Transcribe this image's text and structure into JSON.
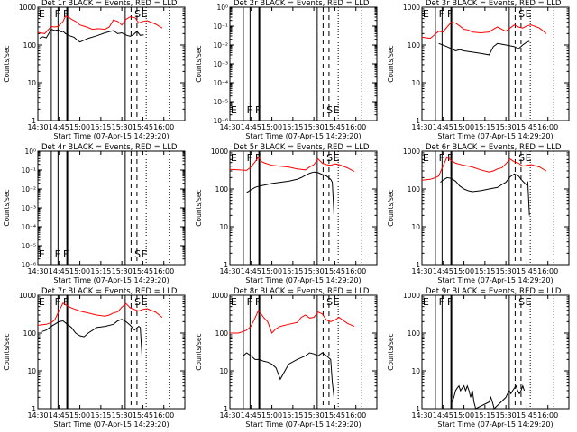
{
  "colors": {
    "events": "#000000",
    "lld": "#ff0000",
    "axes": "#000000",
    "background": "#ffffff"
  },
  "chart_data": [
    {
      "type": "line",
      "title": "Det 1r BLACK = Events, RED = LLD",
      "xlabel": "Start Time (07-Apr-15 14:29:20)",
      "ylabel": "Counts/sec",
      "xticks": [
        "14:30",
        "14:45",
        "15:00",
        "15:15",
        "15:30",
        "15:45",
        "16:00"
      ],
      "yscale": "log",
      "ylim": [
        1,
        1000
      ],
      "yticks": [
        "1",
        "10",
        "100",
        "1000"
      ],
      "marker_labels": [
        "E",
        "F",
        "F",
        "S",
        "E"
      ],
      "events_present": true,
      "series": [
        {
          "name": "LLD",
          "color": "#ff0000",
          "x": [
            14.5,
            14.58,
            14.66,
            14.7,
            14.74,
            14.8,
            14.83,
            14.86,
            14.9,
            14.95,
            15.0,
            15.08,
            15.15,
            15.22,
            15.3,
            15.35,
            15.4,
            15.45,
            15.5,
            15.55,
            15.6,
            15.63,
            15.66,
            15.7,
            15.75,
            15.8,
            15.9,
            15.98
          ],
          "y": [
            215,
            200,
            310,
            300,
            310,
            420,
            580,
            560,
            480,
            420,
            340,
            300,
            260,
            270,
            260,
            300,
            460,
            420,
            340,
            480,
            560,
            540,
            520,
            380,
            420,
            440,
            360,
            280
          ]
        },
        {
          "name": "Events",
          "color": "#000000",
          "x": [
            14.52,
            14.56,
            14.6,
            14.66,
            14.7,
            14.74,
            14.78,
            14.8,
            14.83,
            14.88,
            14.93,
            14.96,
            15.0,
            15.1,
            15.2,
            15.3,
            15.4,
            15.45,
            15.5,
            15.56,
            15.6,
            15.64,
            15.68,
            15.72,
            15.76
          ],
          "y": [
            150,
            165,
            155,
            260,
            240,
            250,
            220,
            230,
            200,
            175,
            160,
            140,
            120,
            150,
            175,
            210,
            240,
            200,
            210,
            180,
            170,
            190,
            230,
            180,
            185
          ]
        }
      ]
    },
    {
      "type": "line",
      "title": "Det 2r BLACK = Events, RED = LLD",
      "xlabel": "Start Time (07-Apr-15 14:29:20)",
      "ylabel": "Counts/sec",
      "xticks": [
        "14:30",
        "14:45",
        "15:00",
        "15:15",
        "15:30",
        "15:45",
        "16:00"
      ],
      "yscale": "log",
      "ylim": [
        1e-06,
        1
      ],
      "yticks": [
        "10⁻⁶",
        "10⁻⁵",
        "10⁻⁴",
        "10⁻³",
        "10⁻²",
        "10⁻¹",
        "10⁰"
      ],
      "marker_labels": [
        "E",
        "F",
        "F",
        "S",
        "E"
      ],
      "events_present": false,
      "series": []
    },
    {
      "type": "line",
      "title": "Det 3r BLACK = Events, RED = LLD",
      "xlabel": "Start Time (07-Apr-15 14:29:20)",
      "ylabel": "Counts/sec",
      "xticks": [
        "14:30",
        "14:45",
        "15:00",
        "15:15",
        "15:30",
        "15:45",
        "16:00"
      ],
      "yscale": "log",
      "ylim": [
        1,
        1000
      ],
      "yticks": [
        "1",
        "10",
        "100",
        "1000"
      ],
      "marker_labels": [
        "E",
        "F",
        "F",
        "S",
        "E"
      ],
      "events_present": true,
      "series": [
        {
          "name": "LLD",
          "color": "#ff0000",
          "x": [
            14.5,
            14.6,
            14.7,
            14.75,
            14.8,
            14.85,
            14.9,
            14.95,
            15.0,
            15.05,
            15.1,
            15.2,
            15.3,
            15.35,
            15.4,
            15.45,
            15.5,
            15.55,
            15.6,
            15.65,
            15.7,
            15.75,
            15.8,
            15.9,
            15.98
          ],
          "y": [
            160,
            150,
            230,
            220,
            300,
            400,
            380,
            320,
            260,
            250,
            220,
            210,
            220,
            260,
            300,
            260,
            230,
            280,
            340,
            300,
            280,
            320,
            340,
            280,
            200
          ]
        },
        {
          "name": "Events",
          "color": "#000000",
          "x": [
            14.7,
            14.75,
            14.8,
            14.85,
            14.9,
            14.95,
            15.0,
            15.1,
            15.2,
            15.3,
            15.35,
            15.4,
            15.45,
            15.5,
            15.55,
            15.6,
            15.65,
            15.7,
            15.75,
            15.78
          ],
          "y": [
            110,
            100,
            90,
            80,
            70,
            75,
            70,
            65,
            60,
            55,
            90,
            110,
            105,
            100,
            95,
            90,
            80,
            100,
            120,
            125
          ]
        }
      ]
    },
    {
      "type": "line",
      "title": "Det 4r BLACK = Events, RED = LLD",
      "xlabel": "Start Time (07-Apr-15 14:29:20)",
      "ylabel": "Counts/sec",
      "xticks": [
        "14:30",
        "14:45",
        "15:00",
        "15:15",
        "15:30",
        "15:45",
        "16:00"
      ],
      "yscale": "log",
      "ylim": [
        1e-06,
        1
      ],
      "yticks": [
        "10⁻⁶",
        "10⁻⁵",
        "10⁻⁴",
        "10⁻³",
        "10⁻²",
        "10⁻¹",
        "10⁰"
      ],
      "marker_labels": [
        "E",
        "F",
        "F",
        "S",
        "E"
      ],
      "events_present": false,
      "series": []
    },
    {
      "type": "line",
      "title": "Det 5r BLACK = Events, RED = LLD",
      "xlabel": "Start Time (07-Apr-15 14:29:20)",
      "ylabel": "Counts/sec",
      "xticks": [
        "14:30",
        "14:45",
        "15:00",
        "15:15",
        "15:30",
        "15:45",
        "16:00"
      ],
      "yscale": "log",
      "ylim": [
        1,
        1000
      ],
      "yticks": [
        "1",
        "10",
        "100",
        "1000"
      ],
      "marker_labels": [
        "E",
        "F",
        "F",
        "S",
        "E"
      ],
      "events_present": true,
      "series": [
        {
          "name": "LLD",
          "color": "#ff0000",
          "x": [
            14.5,
            14.6,
            14.7,
            14.75,
            14.8,
            14.84,
            14.88,
            14.92,
            15.0,
            15.1,
            15.2,
            15.3,
            15.35,
            15.4,
            15.45,
            15.5,
            15.55,
            15.6,
            15.65,
            15.7,
            15.75,
            15.8,
            15.9,
            15.98
          ],
          "y": [
            330,
            320,
            310,
            380,
            520,
            700,
            520,
            480,
            420,
            400,
            380,
            340,
            330,
            320,
            380,
            440,
            620,
            480,
            440,
            420,
            460,
            440,
            360,
            290
          ]
        },
        {
          "name": "Events",
          "color": "#000000",
          "x": [
            14.7,
            14.75,
            14.8,
            14.85,
            14.9,
            15.0,
            15.1,
            15.2,
            15.3,
            15.35,
            15.4,
            15.45,
            15.5,
            15.55,
            15.6,
            15.65,
            15.7,
            15.72,
            15.74
          ],
          "y": [
            80,
            95,
            110,
            120,
            125,
            140,
            150,
            160,
            180,
            200,
            230,
            260,
            280,
            270,
            240,
            220,
            180,
            150,
            20
          ]
        }
      ]
    },
    {
      "type": "line",
      "title": "Det 6r BLACK = Events, RED = LLD",
      "xlabel": "Start Time (07-Apr-15 14:29:20)",
      "ylabel": "Counts/sec",
      "xticks": [
        "14:30",
        "14:45",
        "15:00",
        "15:15",
        "15:30",
        "15:45",
        "16:00"
      ],
      "yscale": "log",
      "ylim": [
        1,
        1000
      ],
      "yticks": [
        "1",
        "10",
        "100",
        "1000"
      ],
      "marker_labels": [
        "E",
        "F",
        "F",
        "S",
        "E"
      ],
      "events_present": true,
      "series": [
        {
          "name": "LLD",
          "color": "#ff0000",
          "x": [
            14.5,
            14.6,
            14.66,
            14.7,
            14.75,
            14.8,
            14.85,
            14.9,
            15.0,
            15.1,
            15.2,
            15.3,
            15.35,
            15.4,
            15.45,
            15.5,
            15.55,
            15.6,
            15.65,
            15.7,
            15.75,
            15.8,
            15.9,
            15.98
          ],
          "y": [
            170,
            180,
            200,
            220,
            400,
            700,
            560,
            480,
            420,
            380,
            320,
            280,
            300,
            340,
            360,
            460,
            620,
            520,
            480,
            400,
            420,
            440,
            380,
            300
          ]
        },
        {
          "name": "Events",
          "color": "#000000",
          "x": [
            14.72,
            14.75,
            14.8,
            14.85,
            14.9,
            14.95,
            15.0,
            15.05,
            15.1,
            15.2,
            15.3,
            15.4,
            15.45,
            15.5,
            15.55,
            15.6,
            15.65,
            15.7,
            15.74,
            15.76,
            15.78
          ],
          "y": [
            150,
            170,
            200,
            190,
            160,
            120,
            100,
            90,
            85,
            90,
            100,
            110,
            130,
            150,
            210,
            250,
            220,
            160,
            130,
            150,
            20
          ]
        }
      ]
    },
    {
      "type": "line",
      "title": "Det 7r BLACK = Events, RED = LLD",
      "xlabel": "Start Time (07-Apr-15 14:29:20)",
      "ylabel": "Counts/sec",
      "xticks": [
        "14:30",
        "14:45",
        "15:00",
        "15:15",
        "15:30",
        "15:45",
        "16:00"
      ],
      "yscale": "log",
      "ylim": [
        1,
        1000
      ],
      "yticks": [
        "1",
        "10",
        "100",
        "1000"
      ],
      "marker_labels": [
        "E",
        "F",
        "F",
        "S",
        "E"
      ],
      "events_present": true,
      "series": [
        {
          "name": "LLD",
          "color": "#ff0000",
          "x": [
            14.5,
            14.6,
            14.66,
            14.7,
            14.75,
            14.8,
            14.85,
            14.9,
            15.0,
            15.1,
            15.2,
            15.3,
            15.35,
            15.4,
            15.45,
            15.5,
            15.55,
            15.6,
            15.65,
            15.7,
            15.75,
            15.8,
            15.9,
            15.98
          ],
          "y": [
            160,
            170,
            190,
            220,
            380,
            620,
            520,
            460,
            380,
            340,
            300,
            280,
            300,
            340,
            360,
            480,
            600,
            460,
            420,
            380,
            420,
            440,
            360,
            260
          ]
        },
        {
          "name": "Events",
          "color": "#000000",
          "x": [
            14.55,
            14.6,
            14.66,
            14.7,
            14.75,
            14.8,
            14.85,
            14.9,
            14.95,
            15.0,
            15.05,
            15.1,
            15.2,
            15.3,
            15.4,
            15.45,
            15.5,
            15.55,
            15.6,
            15.65,
            15.7,
            15.72,
            15.74
          ],
          "y": [
            110,
            120,
            150,
            170,
            200,
            210,
            170,
            140,
            100,
            85,
            80,
            100,
            140,
            150,
            170,
            210,
            230,
            200,
            160,
            120,
            150,
            140,
            25
          ]
        }
      ]
    },
    {
      "type": "line",
      "title": "Det 8r BLACK = Events, RED = LLD",
      "xlabel": "Start Time (07-Apr-15 14:29:20)",
      "ylabel": "Counts/sec",
      "xticks": [
        "14:30",
        "14:45",
        "15:00",
        "15:15",
        "15:30",
        "15:45",
        "16:00"
      ],
      "yscale": "log",
      "ylim": [
        1,
        1000
      ],
      "yticks": [
        "1",
        "10",
        "100",
        "1000"
      ],
      "marker_labels": [
        "E",
        "F",
        "F",
        "S",
        "E"
      ],
      "events_present": true,
      "series": [
        {
          "name": "LLD",
          "color": "#ff0000",
          "x": [
            14.5,
            14.6,
            14.66,
            14.7,
            14.75,
            14.8,
            14.84,
            14.9,
            14.95,
            15.0,
            15.05,
            15.1,
            15.2,
            15.3,
            15.35,
            15.4,
            15.45,
            15.5,
            15.55,
            15.6,
            15.65,
            15.7,
            15.75,
            15.8,
            15.9,
            15.98
          ],
          "y": [
            100,
            100,
            110,
            120,
            150,
            250,
            400,
            260,
            200,
            100,
            130,
            150,
            170,
            190,
            260,
            300,
            250,
            260,
            360,
            320,
            220,
            200,
            220,
            260,
            180,
            150
          ]
        },
        {
          "name": "Events",
          "color": "#000000",
          "x": [
            14.66,
            14.7,
            14.75,
            14.8,
            14.85,
            14.9,
            14.95,
            15.0,
            15.05,
            15.1,
            15.2,
            15.3,
            15.4,
            15.45,
            15.5,
            15.55,
            15.6,
            15.65,
            15.7,
            15.72,
            15.74
          ],
          "y": [
            25,
            30,
            25,
            20,
            20,
            18,
            17,
            15,
            12,
            6,
            15,
            20,
            25,
            30,
            28,
            25,
            30,
            25,
            20,
            5,
            2
          ]
        }
      ]
    },
    {
      "type": "line",
      "title": "Det 9r BLACK = Events, RED = LLD",
      "xlabel": "Start Time (07-Apr-15 14:29:20)",
      "ylabel": "Counts/sec",
      "xticks": [
        "14:30",
        "14:45",
        "15:00",
        "15:15",
        "15:30",
        "15:45",
        "16:00"
      ],
      "yscale": "log",
      "ylim": [
        1,
        1000
      ],
      "yticks": [
        "1",
        "10",
        "100",
        "1000"
      ],
      "marker_labels": [
        "E",
        "F",
        "F",
        "S",
        "E"
      ],
      "events_present": true,
      "series": [
        {
          "name": "Events",
          "color": "#000000",
          "x": [
            14.86,
            14.88,
            14.9,
            14.92,
            14.94,
            14.96,
            14.98,
            15.0,
            15.02,
            15.04,
            15.06,
            15.08,
            15.1,
            15.12,
            15.14,
            15.3,
            15.32,
            15.34,
            15.36,
            15.5,
            15.52,
            15.54,
            15.56,
            15.58,
            15.6,
            15.62,
            15.64,
            15.66,
            15.68,
            15.7,
            15.72
          ],
          "y": [
            1.5,
            2,
            3,
            3.5,
            4,
            3,
            3.5,
            4,
            3,
            4,
            3,
            2,
            3,
            1.5,
            1,
            1.5,
            2,
            1.5,
            1,
            2,
            2.5,
            3,
            2.5,
            3,
            3.5,
            4,
            3,
            2.5,
            3,
            4,
            3
          ]
        }
      ]
    }
  ]
}
